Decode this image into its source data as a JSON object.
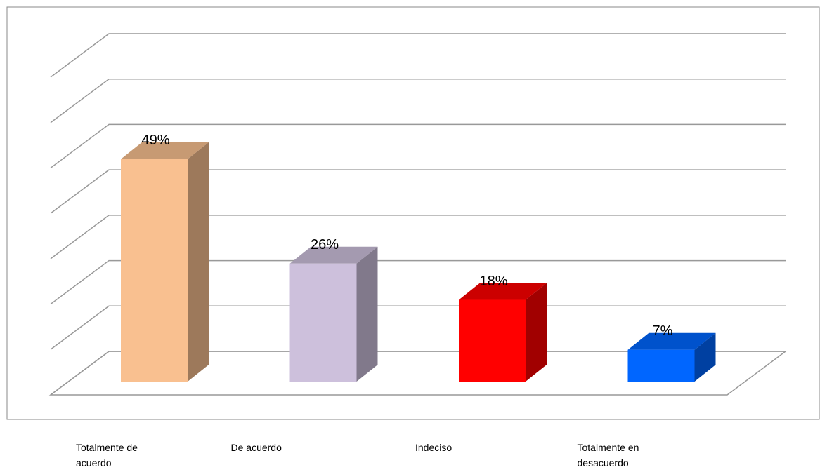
{
  "chart_data": {
    "type": "bar3d",
    "categories": [
      "Totalmente de acuerdo",
      "De acuerdo",
      "Indeciso",
      "Totalmente en desacuerdo"
    ],
    "values": [
      49,
      26,
      18,
      7
    ],
    "value_labels": [
      "49%",
      "26%",
      "18%",
      "7%"
    ],
    "colors": [
      "#f9c090",
      "#cdc0dc",
      "#ff0000",
      "#0066ff"
    ],
    "ylim": [
      0,
      70
    ],
    "yticks": [
      0,
      10,
      20,
      30,
      40,
      50,
      60,
      70
    ],
    "grid": true
  }
}
